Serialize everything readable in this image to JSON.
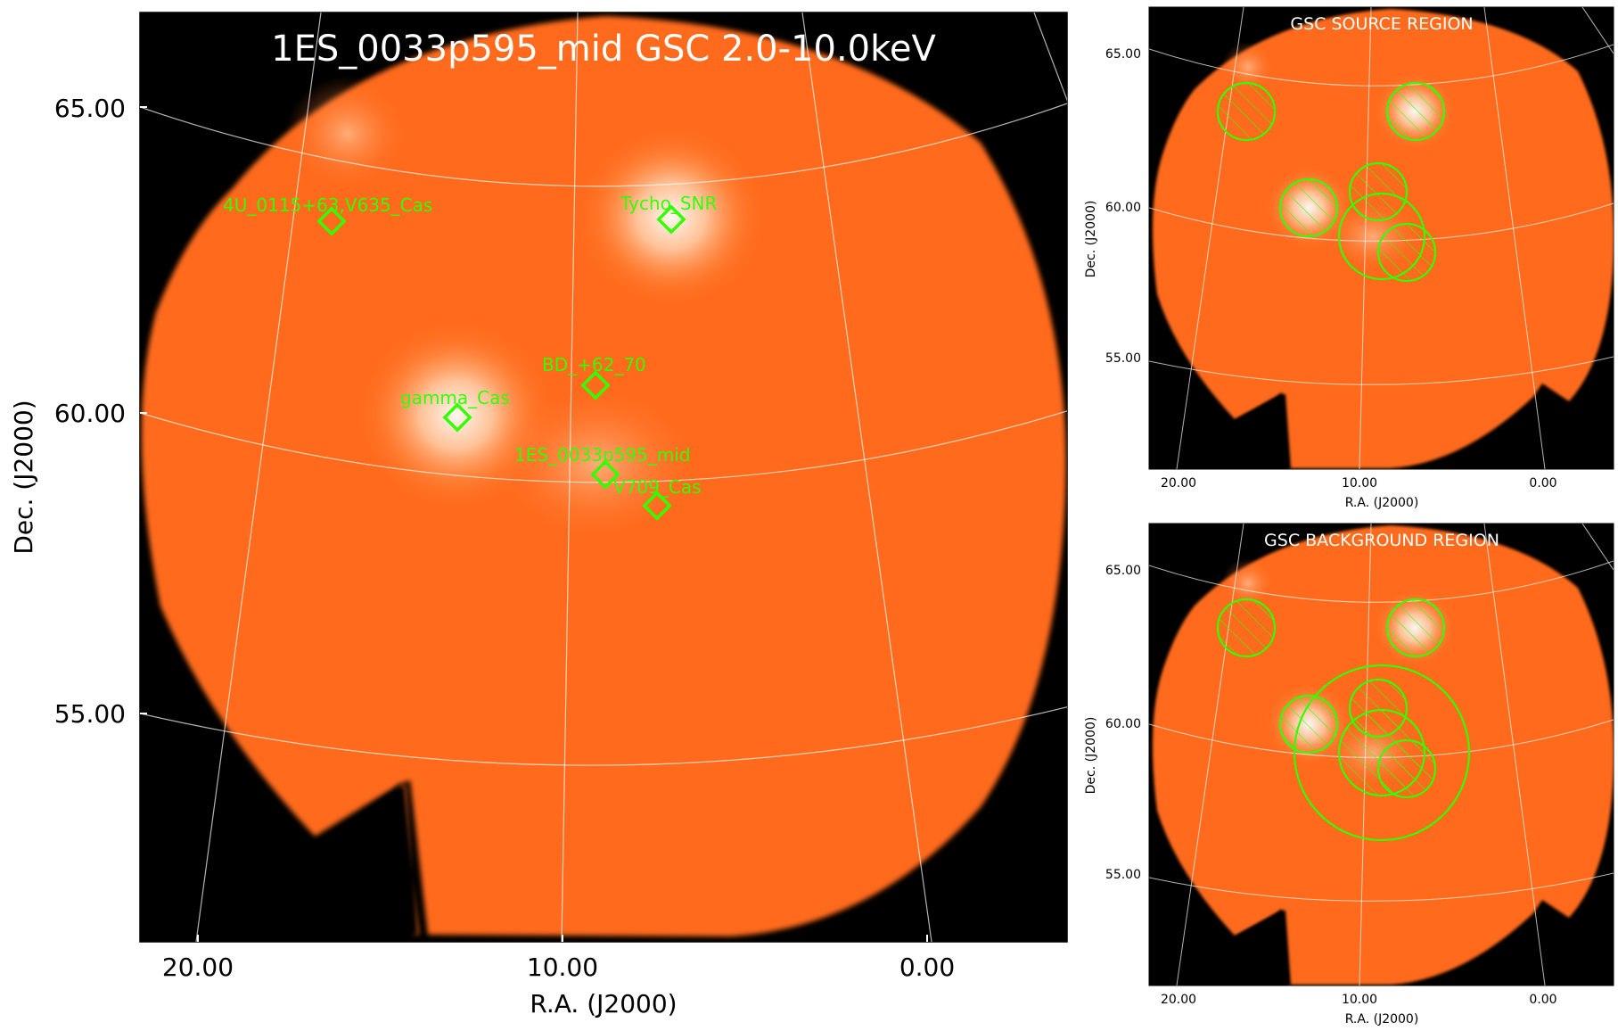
{
  "main": {
    "title": "1ES_0033p595_mid GSC 2.0-10.0keV",
    "xlabel": "R.A. (J2000)",
    "ylabel": "Dec. (J2000)",
    "xticks": [
      "20.00",
      "10.00",
      "0.00"
    ],
    "yticks": [
      "65.00",
      "60.00",
      "55.00"
    ],
    "sources": [
      {
        "name": "4U_0115+63,V635_Cas"
      },
      {
        "name": "Tycho_SNR"
      },
      {
        "name": "BD_+62_70"
      },
      {
        "name": "gamma_Cas"
      },
      {
        "name": "1ES_0033p595_mid"
      },
      {
        "name": "V709_Cas"
      }
    ]
  },
  "source_panel": {
    "title": "GSC SOURCE REGION",
    "xlabel": "R.A. (J2000)",
    "ylabel": "Dec. (J2000)",
    "xticks": [
      "20.00",
      "10.00",
      "0.00"
    ],
    "yticks": [
      "65.00",
      "60.00",
      "55.00"
    ]
  },
  "background_panel": {
    "title": "GSC BACKGROUND REGION",
    "xlabel": "R.A. (J2000)",
    "ylabel": "Dec. (J2000)",
    "xticks": [
      "20.00",
      "10.00",
      "0.00"
    ],
    "yticks": [
      "65.00",
      "60.00",
      "55.00"
    ]
  },
  "colors": {
    "marker": "#33ff00",
    "sky": "#ff6a1a",
    "background": "#000000",
    "grid": "#ffffff"
  }
}
